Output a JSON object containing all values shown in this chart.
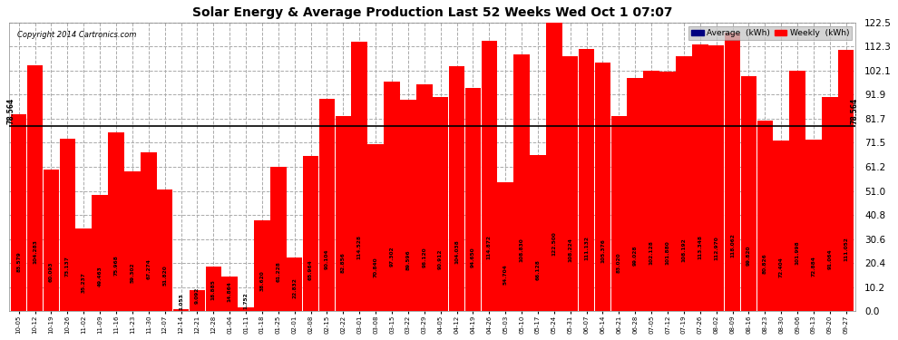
{
  "title": "Solar Energy & Average Production Last 52 Weeks Wed Oct 1 07:07",
  "copyright": "Copyright 2014 Cartronics.com",
  "average_value": 78.564,
  "bar_color": "#FF0000",
  "average_line_color": "#000000",
  "background_color": "#FFFFFF",
  "plot_bg_color": "#FFFFFF",
  "ylim": [
    0,
    122.5
  ],
  "yticks": [
    0.0,
    10.2,
    20.4,
    30.6,
    40.8,
    51.0,
    61.2,
    71.5,
    81.7,
    91.9,
    102.1,
    112.3,
    122.5
  ],
  "legend_avg_color": "#000080",
  "legend_weekly_color": "#FF0000",
  "labels": [
    "10-05",
    "10-12",
    "10-19",
    "10-26",
    "11-02",
    "11-09",
    "11-16",
    "11-23",
    "11-30",
    "12-07",
    "12-14",
    "12-21",
    "12-28",
    "01-04",
    "01-11",
    "01-18",
    "01-25",
    "02-01",
    "02-08",
    "02-15",
    "02-22",
    "03-01",
    "03-08",
    "03-15",
    "03-22",
    "03-29",
    "04-05",
    "04-12",
    "04-19",
    "04-26",
    "05-03",
    "05-10",
    "05-17",
    "05-24",
    "05-31",
    "06-07",
    "06-14",
    "06-21",
    "06-28",
    "07-05",
    "07-12",
    "07-19",
    "07-26",
    "08-02",
    "08-09",
    "08-16",
    "08-23",
    "08-30",
    "09-06",
    "09-13",
    "09-20",
    "09-27"
  ],
  "values": [
    83.579,
    104.283,
    60.093,
    73.137,
    35.237,
    49.463,
    75.968,
    59.302,
    67.274,
    51.82,
    1.053,
    9.092,
    18.885,
    14.864,
    1.752,
    38.62,
    61.228,
    22.832,
    65.964,
    90.104,
    82.856,
    114.528,
    70.84,
    97.302,
    89.596,
    96.12,
    90.912,
    104.038,
    94.65,
    114.872,
    54.704,
    108.83,
    66.128,
    122.5,
    108.224,
    111.132,
    105.376,
    83.02,
    99.028,
    102.128,
    101.88,
    108.192,
    113.348,
    112.97,
    118.062,
    99.82,
    80.826,
    72.404,
    101.998,
    72.884,
    91.064,
    111.052
  ]
}
